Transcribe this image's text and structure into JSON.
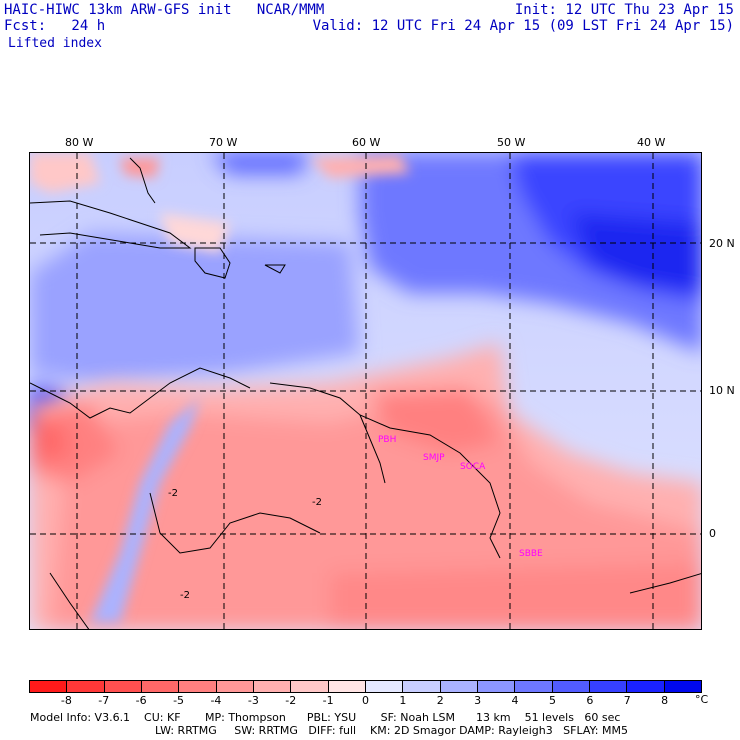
{
  "header": {
    "title_line1": "HAIC-HIWC 13km ARW-GFS init   NCAR/MMM",
    "fcst_line": "Fcst:   24 h",
    "field_name": "Lifted index",
    "init_line": "Init: 12 UTC Thu 23 Apr 15",
    "valid_line": "Valid: 12 UTC Fri 24 Apr 15 (09 LST Fri 24 Apr 15)"
  },
  "map": {
    "lon_labels": [
      "80 W",
      "70 W",
      "60 W",
      "50 W",
      "40 W"
    ],
    "lat_labels": [
      "20 N",
      "10 N",
      "0"
    ],
    "contour_labels": [
      "-2",
      "-2",
      "-2"
    ],
    "stations": [
      "PBH",
      "SMJP",
      "SOCA",
      "SBBE"
    ],
    "colors": {
      "positive": "#4a5ee8",
      "negative": "#f07a82",
      "station": "#ff00ff"
    }
  },
  "colorbar": {
    "ticks": [
      "-8",
      "-7",
      "-6",
      "-5",
      "-4",
      "-3",
      "-2",
      "-1",
      "0",
      "1",
      "2",
      "3",
      "4",
      "5",
      "6",
      "7",
      "8"
    ],
    "unit": "°C",
    "colors": [
      "#ff1a1a",
      "#ff3838",
      "#ff5050",
      "#ff6868",
      "#ff8080",
      "#ff9898",
      "#ffb0b0",
      "#ffc8c8",
      "#ffe4e4",
      "#e4e8ff",
      "#c8ceff",
      "#aab2ff",
      "#8c96ff",
      "#6e78ff",
      "#525cff",
      "#3640ff",
      "#1a22ff",
      "#0008ee"
    ]
  },
  "footer": {
    "line1": "Model Info: V3.6.1    CU: KF       MP: Thompson      PBL: YSU       SF: Noah LSM      13 km    51 levels   60 sec",
    "line2": "LW: RRTMG     SW: RRTMG   DIFF: full    KM: 2D Smagor DAMP: Rayleigh3   SFLAY: MM5"
  }
}
